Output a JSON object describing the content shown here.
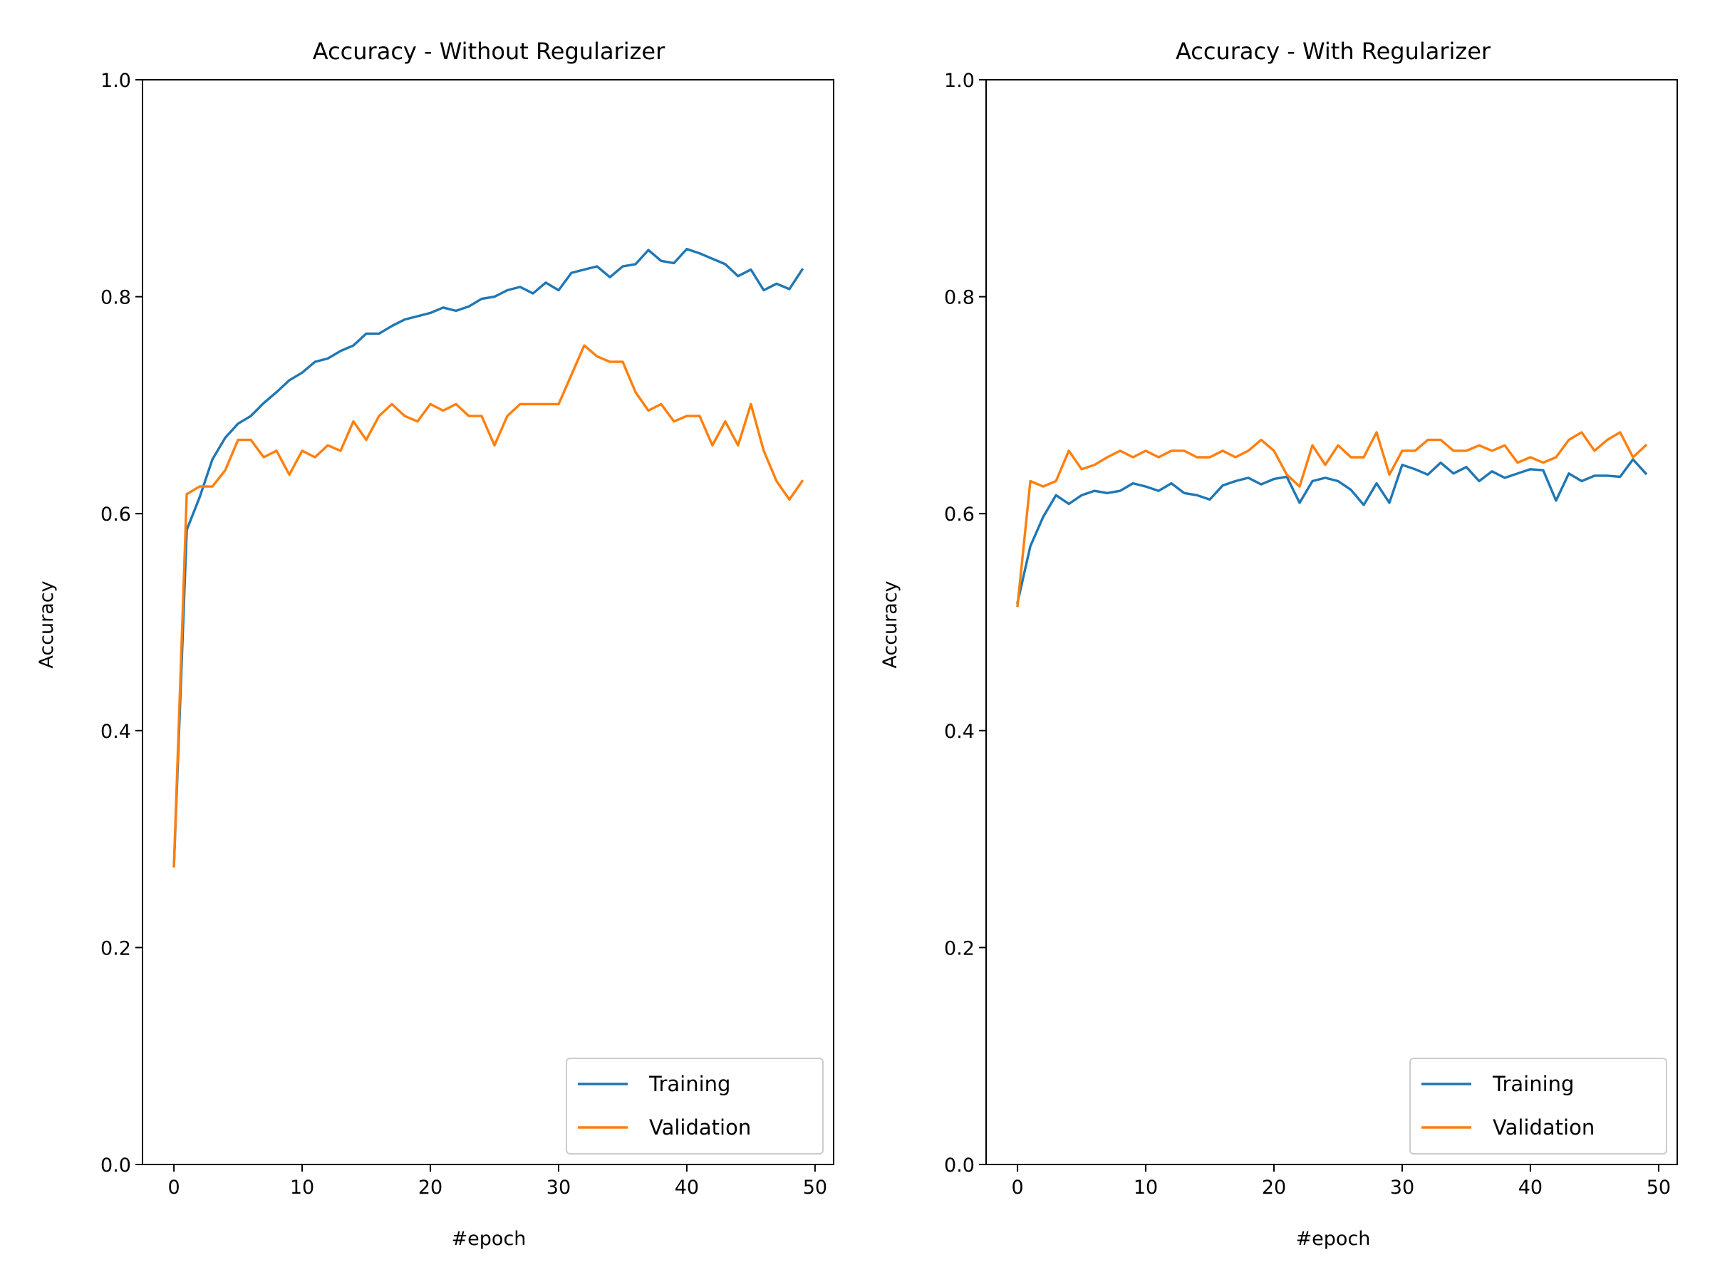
{
  "figure": {
    "background": "#ffffff",
    "series_colors": {
      "Training": "#1f77b4",
      "Validation": "#ff7f0e"
    }
  },
  "chart_data": [
    {
      "type": "line",
      "title": "Accuracy - Without Regularizer",
      "xlabel": "#epoch",
      "ylabel": "Accuracy",
      "xlim": [
        -2.45,
        51.45
      ],
      "ylim": [
        0,
        1
      ],
      "xticks": [
        0,
        10,
        20,
        30,
        40,
        50
      ],
      "yticks": [
        0.0,
        0.2,
        0.4,
        0.6,
        0.8,
        1.0
      ],
      "ytick_labels": [
        "0.0",
        "0.2",
        "0.4",
        "0.6",
        "0.8",
        "1.0"
      ],
      "grid": false,
      "legend_position": "lower-right",
      "x": [
        0,
        1,
        2,
        3,
        4,
        5,
        6,
        7,
        8,
        9,
        10,
        11,
        12,
        13,
        14,
        15,
        16,
        17,
        18,
        19,
        20,
        21,
        22,
        23,
        24,
        25,
        26,
        27,
        28,
        29,
        30,
        31,
        32,
        33,
        34,
        35,
        36,
        37,
        38,
        39,
        40,
        41,
        42,
        43,
        44,
        45,
        46,
        47,
        48,
        49
      ],
      "series": [
        {
          "name": "Training",
          "color": "#1f77b4",
          "values": [
            0.275,
            0.585,
            0.615,
            0.65,
            0.67,
            0.683,
            0.69,
            0.702,
            0.712,
            0.723,
            0.73,
            0.74,
            0.743,
            0.75,
            0.755,
            0.766,
            0.766,
            0.773,
            0.779,
            0.782,
            0.785,
            0.79,
            0.787,
            0.791,
            0.798,
            0.8,
            0.806,
            0.809,
            0.803,
            0.813,
            0.806,
            0.822,
            0.825,
            0.828,
            0.818,
            0.828,
            0.83,
            0.843,
            0.833,
            0.831,
            0.844,
            0.84,
            0.835,
            0.83,
            0.819,
            0.825,
            0.806,
            0.812,
            0.807,
            0.825
          ]
        },
        {
          "name": "Validation",
          "color": "#ff7f0e",
          "values": [
            0.275,
            0.618,
            0.625,
            0.625,
            0.64,
            0.668,
            0.668,
            0.652,
            0.658,
            0.636,
            0.658,
            0.652,
            0.663,
            0.658,
            0.685,
            0.668,
            0.69,
            0.701,
            0.69,
            0.685,
            0.701,
            0.695,
            0.701,
            0.69,
            0.69,
            0.663,
            0.69,
            0.701,
            0.701,
            0.701,
            0.701,
            0.728,
            0.755,
            0.745,
            0.74,
            0.74,
            0.712,
            0.695,
            0.701,
            0.685,
            0.69,
            0.69,
            0.663,
            0.685,
            0.663,
            0.701,
            0.658,
            0.63,
            0.613,
            0.63
          ]
        }
      ]
    },
    {
      "type": "line",
      "title": "Accuracy - With Regularizer",
      "xlabel": "#epoch",
      "ylabel": "Accuracy",
      "xlim": [
        -2.45,
        51.45
      ],
      "ylim": [
        0,
        1
      ],
      "xticks": [
        0,
        10,
        20,
        30,
        40,
        50
      ],
      "yticks": [
        0.0,
        0.2,
        0.4,
        0.6,
        0.8,
        1.0
      ],
      "ytick_labels": [
        "0.0",
        "0.2",
        "0.4",
        "0.6",
        "0.8",
        "1.0"
      ],
      "grid": false,
      "legend_position": "lower-right",
      "x": [
        0,
        1,
        2,
        3,
        4,
        5,
        6,
        7,
        8,
        9,
        10,
        11,
        12,
        13,
        14,
        15,
        16,
        17,
        18,
        19,
        20,
        21,
        22,
        23,
        24,
        25,
        26,
        27,
        28,
        29,
        30,
        31,
        32,
        33,
        34,
        35,
        36,
        37,
        38,
        39,
        40,
        41,
        42,
        43,
        44,
        45,
        46,
        47,
        48,
        49
      ],
      "series": [
        {
          "name": "Training",
          "color": "#1f77b4",
          "values": [
            0.518,
            0.57,
            0.597,
            0.617,
            0.609,
            0.617,
            0.621,
            0.619,
            0.621,
            0.628,
            0.625,
            0.621,
            0.628,
            0.619,
            0.617,
            0.613,
            0.626,
            0.63,
            0.633,
            0.627,
            0.632,
            0.634,
            0.61,
            0.63,
            0.633,
            0.63,
            0.622,
            0.608,
            0.628,
            0.61,
            0.645,
            0.641,
            0.636,
            0.647,
            0.637,
            0.643,
            0.63,
            0.639,
            0.633,
            0.637,
            0.641,
            0.64,
            0.612,
            0.637,
            0.63,
            0.635,
            0.635,
            0.634,
            0.65,
            0.637
          ]
        },
        {
          "name": "Validation",
          "color": "#ff7f0e",
          "values": [
            0.515,
            0.63,
            0.625,
            0.63,
            0.658,
            0.641,
            0.645,
            0.652,
            0.658,
            0.652,
            0.658,
            0.652,
            0.658,
            0.658,
            0.652,
            0.652,
            0.658,
            0.652,
            0.658,
            0.668,
            0.658,
            0.636,
            0.625,
            0.663,
            0.645,
            0.663,
            0.652,
            0.652,
            0.675,
            0.636,
            0.658,
            0.658,
            0.668,
            0.668,
            0.658,
            0.658,
            0.663,
            0.658,
            0.663,
            0.647,
            0.652,
            0.647,
            0.652,
            0.668,
            0.675,
            0.658,
            0.668,
            0.675,
            0.652,
            0.663
          ]
        }
      ]
    }
  ]
}
